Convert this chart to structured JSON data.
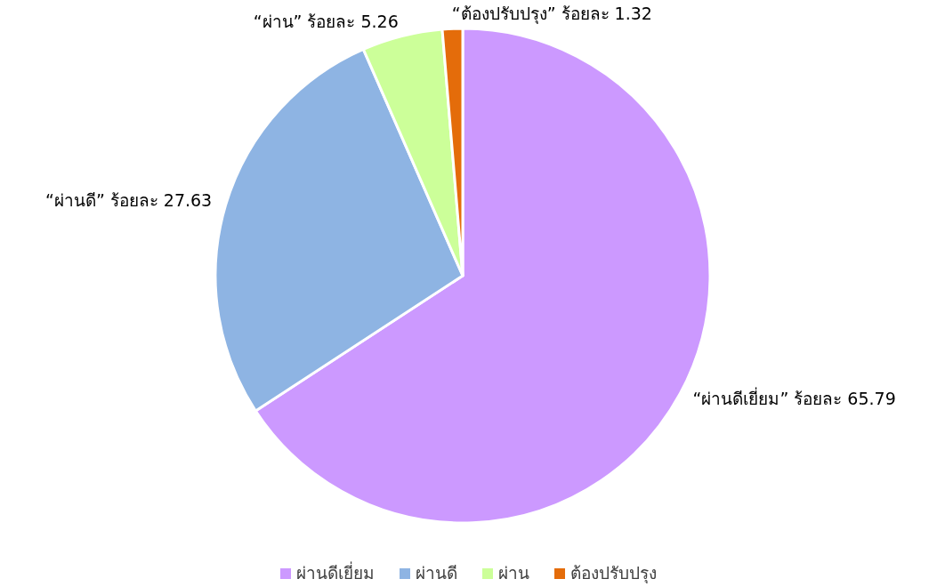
{
  "chart_data": {
    "type": "pie",
    "categories": [
      "ผ่านดีเยี่ยม",
      "ผ่านดี",
      "ผ่าน",
      "ต้องปรับปรุง"
    ],
    "values": [
      65.79,
      27.63,
      5.26,
      1.32
    ],
    "colors": [
      "#cc99ff",
      "#8eb4e3",
      "#ccff99",
      "#e46c0a"
    ],
    "value_labels": [
      "“ผ่านดีเยี่ยม” ร้อยละ 65.79",
      "“ผ่านดี” ร้อยละ 27.63",
      "“ผ่าน” ร้อยละ 5.26",
      "“ต้องปรับปรุง” ร้อยละ 1.32"
    ],
    "legend": "bottom"
  }
}
